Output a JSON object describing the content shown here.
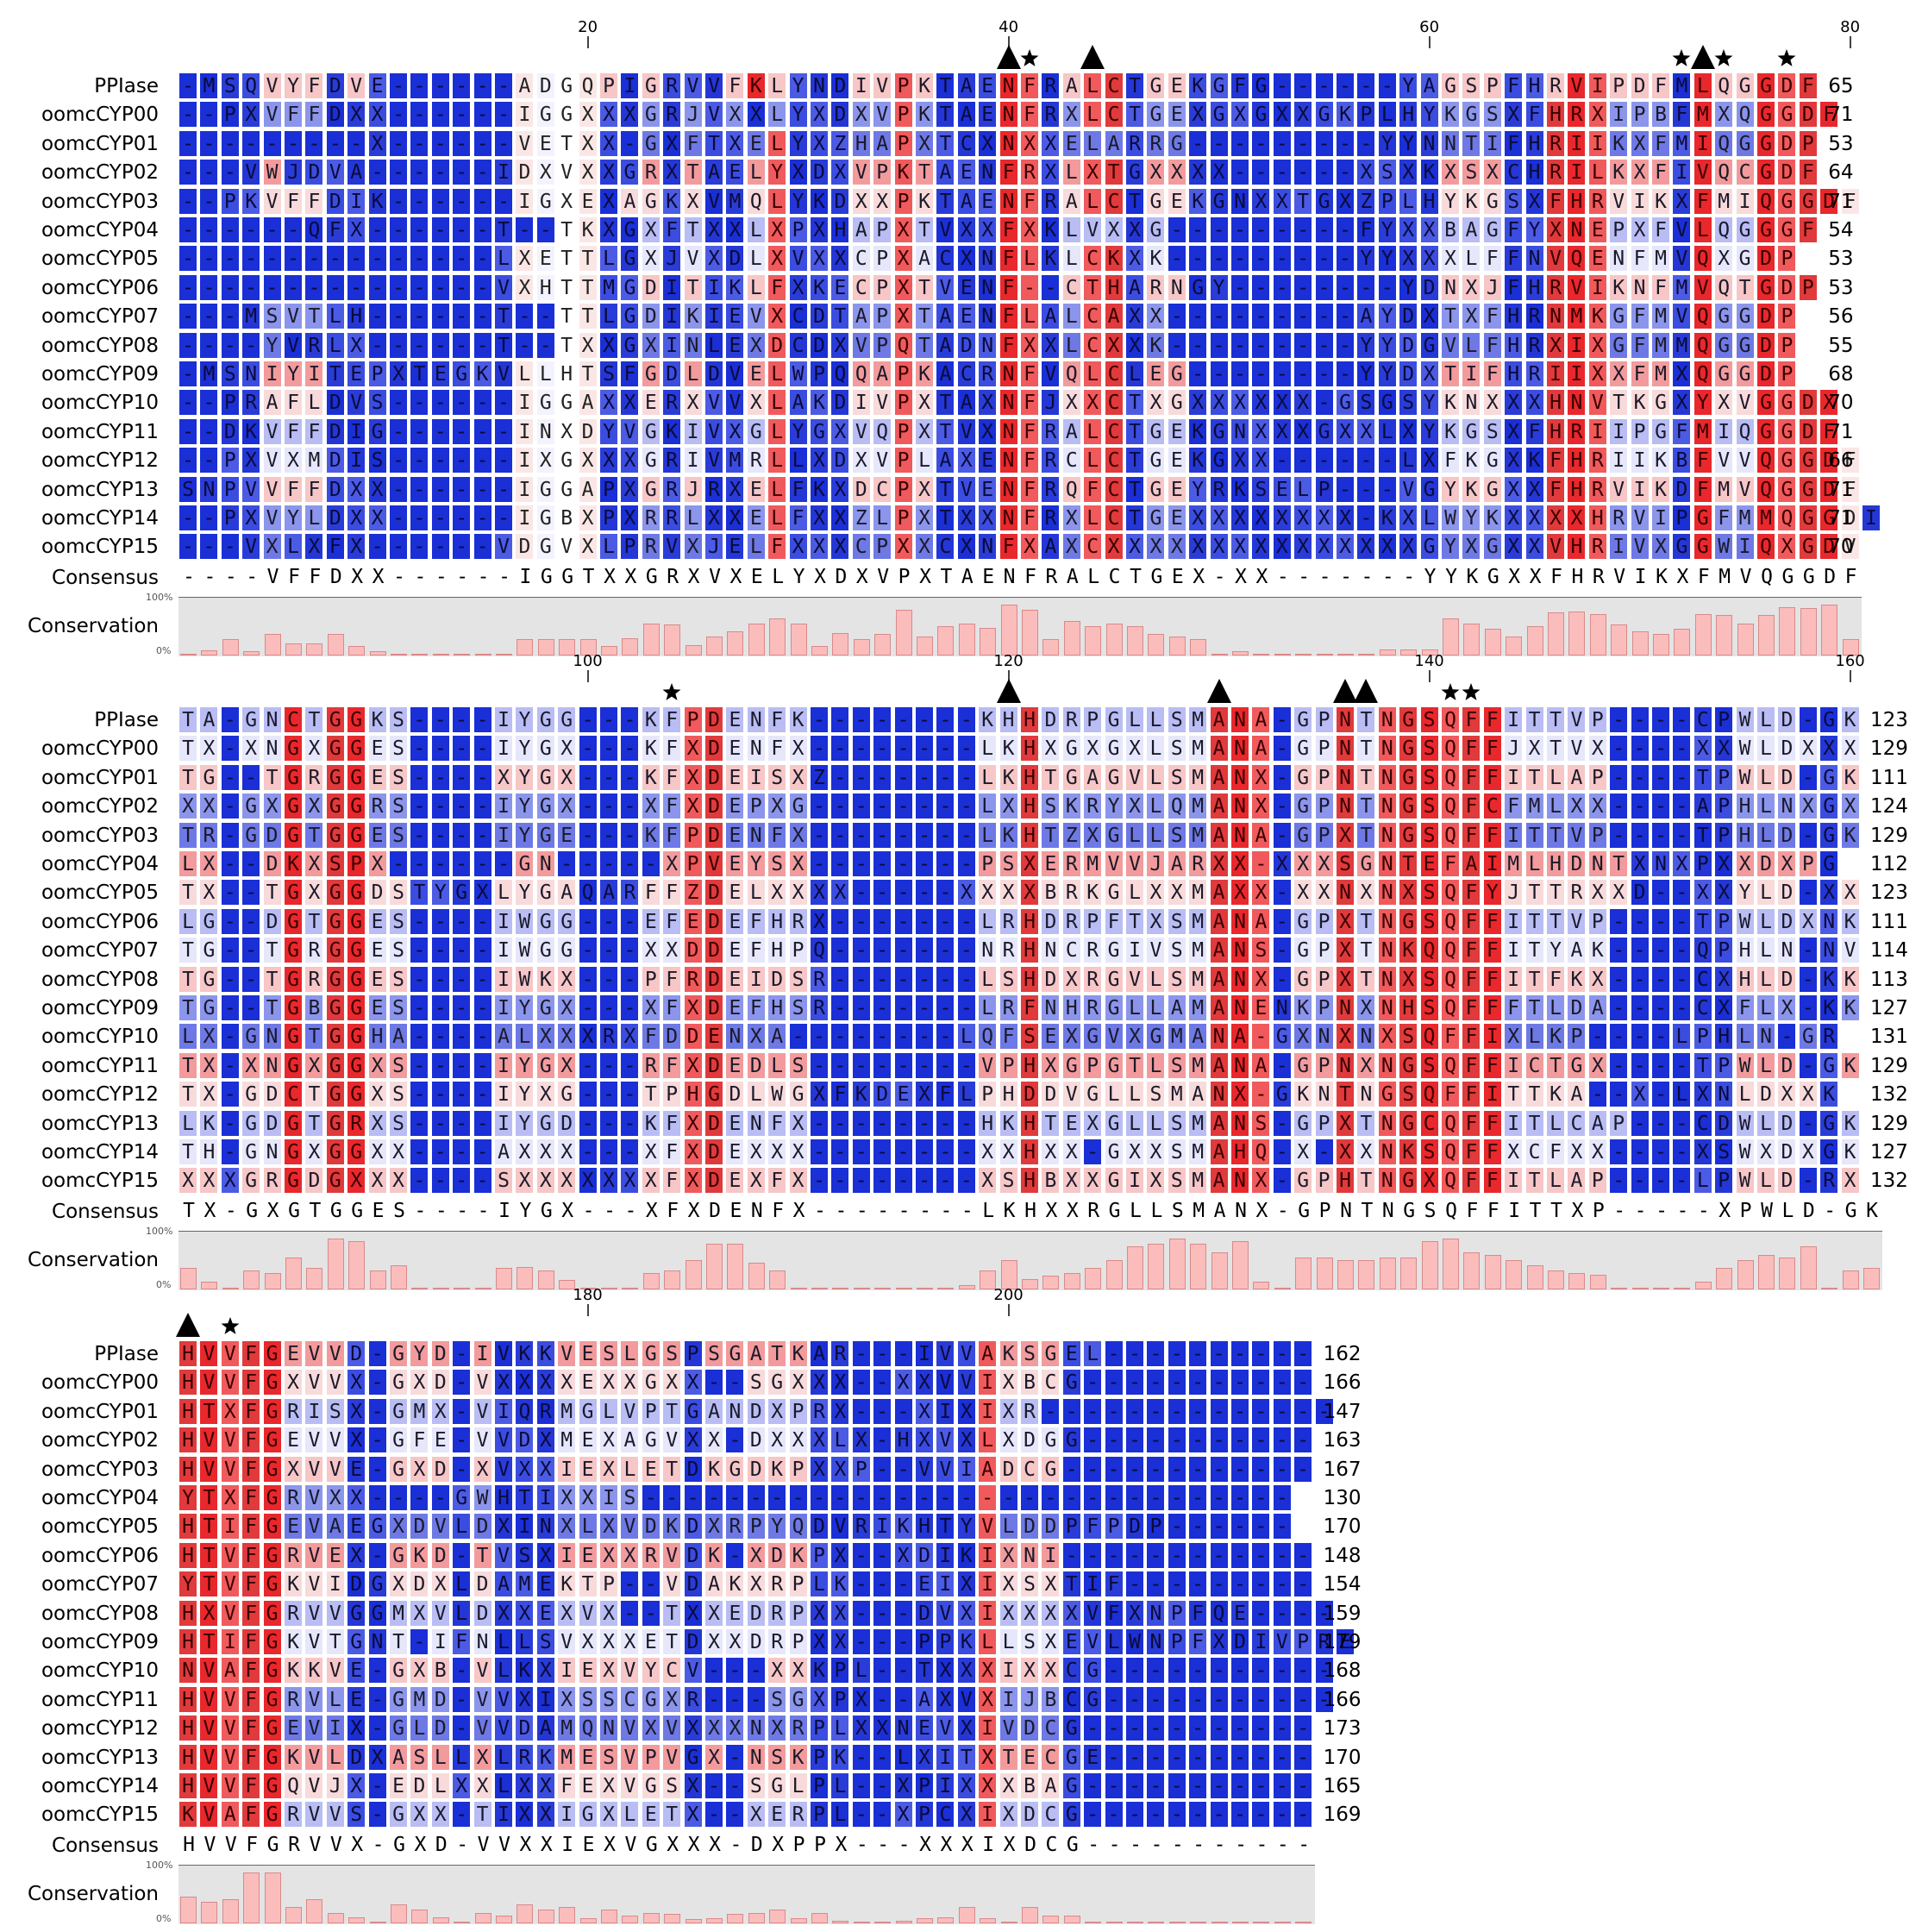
{
  "figure": {
    "labels": {
      "consensus": "Consensus",
      "conservation": "Conservation",
      "pct_top": "100%",
      "pct_bottom": "0%"
    },
    "sequence_names": [
      "PPIase",
      "oomcCYP00",
      "oomcCYP01",
      "oomcCYP02",
      "oomcCYP03",
      "oomcCYP04",
      "oomcCYP05",
      "oomcCYP06",
      "oomcCYP07",
      "oomcCYP08",
      "oomcCYP09",
      "oomcCYP10",
      "oomcCYP11",
      "oomcCYP12",
      "oomcCYP13",
      "oomcCYP14",
      "oomcCYP15"
    ],
    "colors": {
      "red": "#e8282c",
      "blue": "#1a2fd6",
      "white": "#ffffff",
      "bar": "#fbbcbc"
    },
    "blocks": [
      {
        "ruler": [
          {
            "pos": 20,
            "label": "20"
          },
          {
            "pos": 40,
            "label": "40"
          },
          {
            "pos": 60,
            "label": "60"
          },
          {
            "pos": 80,
            "label": "80"
          }
        ],
        "marks": [
          {
            "pos": 40,
            "type": "triangle"
          },
          {
            "pos": 41,
            "type": "star"
          },
          {
            "pos": 44,
            "type": "triangle"
          },
          {
            "pos": 72,
            "type": "star"
          },
          {
            "pos": 73,
            "type": "triangle"
          },
          {
            "pos": 74,
            "type": "star"
          },
          {
            "pos": 77,
            "type": "star"
          }
        ],
        "rows": [
          "-MSQVYFDVE------ADGQPIGRVVFKLYNDIVPKTAENFRALCTGEKGFG------YAGSPFHRVIPDFMLQGGDF",
          "--PXVFFDXX------IGGXXXGRJVXXLYXDXVPKTAENFRXLCTGEXGXGXXGKPLHYKGSXFHRXIPBFMXQGGDF",
          "---------X------VETXX-GXFTXELYXZHAPXTCXNXXELARRG---------YYNNTIFHRIIKXFMIQGGDP",
          "---VWJDVA------IDXVXXGRXTAELYXDXVPKTAENFRXLXTGXXXX------XSXKXSXCHRILKXFIVQCGDF",
          "--PKVFFDIK------IGXEXAGKXVMQLYKDXXPKTAENFRALCTGEKGNXXTGXZPLHYKGSXFHRVIKXFMIQGGDF",
          "------QFX------T--TKXGXFTXXLXPXHAPXTVXXFXKLVXXG---------FYXXBAGFYXNEPXFVLQGGGF",
          "---------------LXETTLGXJVXDLXVXXCPXACXNFLKLCKXK---------YYXXXLFFNVQENFMVQXGDP",
          "---------------VXHTTMGDITIKLFXKECPXTVENF--CTHARNGY--------YDNXJFHRVIKNFMVQTGDP",
          "---MSVTLH------T--TTLGDIKIEVXCDTAPXTAENFLALCAXX---------AYDXTXFHRNMKGFMVQGGDP",
          "----YVRLX------T--TXXGXINLEXDCDXVPQTADNFXXLCXXK---------YYDGVLFHRXIXGFMMQGGDP",
          "-MSNIYITEPXTEGKVLLHTSFGDLDVELWPQQAPKACRNFVQLCLEG--------YYDXTIFHRIIXXFMXQGGDP",
          "--PRAFLDVS------IGGAXXERXVVXLAKDIVPXTAXNFJXXCTXGXXXXXX-GSGSYKNXXXHNVTKGXYXVGGDX",
          "--DKVFFDIG------INXDYVGKIVXGLYGXVQPXTVXNFRALCTGEKGNXXXGXXLXYKGSXFHRIIPGFMIQGGDF",
          "--PXVXMDIS------IXGXXXGRIVMRLLXDXVPLAXENFRCLCTGEKGXX------LXFKGXKFHRIIKBFVVQGGDF",
          "SNPVVFFDXX------IGGAPXGRJRXELFKXDCPXTVENFRQFCTGEYRKSELP---VGYKGXXFHRVIKDFMVQGGDF",
          "--PXVYLDXX------IGBXPXRRLXXELFXXZLPXTXXNFRXLCTGEXXXXXXXX-KXLWYKXXXXHRVIPGFMMQGGDI",
          "---VXLXFX------VDGVXLPRVXJELFXXXCPXXCXNFXAXCXXXXXXXXXXXXXXXGYXGXXVHRIVXGGWIQXGDV"
        ],
        "colors": [
          "BBBBLLLBLBBBBBBBWWWWLBLBBBLRLBBBLLRLBBBRRBLRRBLLBBBBBBBBBBBBLLLBBLRRLLLBRLLRRRRW",
          "BBBBLLLBBBBBBBBBWWWWBBLBLBLBLBBBLLRLBBBRRBLRRBLLBBBBBBBBBBBBLLLBBRRRLLLBRLLRRRRW",
          "BBBBBBBBBBBBBBBBWWWWBBLBLBBLRBBBLLRLBBBRRBLLLBLLBBBBBBBBBBBBLLLBBRRRLLLBRLLRRRRW",
          "BBBBLBBBBBBBBBBBWWWWBBLBLBBLRBBBLLRLBBBRRBLRRBLLBBBBBBBBBBBBLLLBBRRRLLLBRLLRRRRW",
          "BBBBLLLBBBBBBBBBWWWWBLLBLBBLRBBBLLRLBBBRRBLRRBLLBBBBBBBBBBBBLLLBBRRRLLLBRLLRRRRW",
          "BBBBBBBBBBBBBBBBWWWWBBLBLBBLRBBBLLRLBBBRRBLLLBLLBBBBBBBBBBBBLLLBBRRRLLLBRLLRRRRW",
          "BBBBBBBBBBBBBBBBWWWWBBLBLBBLRBBBLLRLBBBRRBLRRBLLBBBBBBBBBBBBLLLBBRRRLLLBRLLRRRRW",
          "BBBBBBBBBBBBBBBBWWWWBBLBLBBLRBBBLLRLBBBRRBLRRBLLBBBBBBBBBBBBLLLBBRRRLLLBRLLRRRRW",
          "BBBBLLLBBBBBBBBBWWWWBBLBLBBLRBBBLLRLBBBRRBLRRBLLBBBBBBBBBBBBLLLBBRRRLLLBRLLRRRRW",
          "BBBBLBBBBBBBBBBBWWWWBBLBLBBLRBBBLLRLBBBRRBLRRBLLBBBBBBBBBBBBLLLBBRRRLLLBRLLRRRRW",
          "BBBBLLLBBBBBBBBBWWWWBBLBLBBLRBBBLLRLBBBRRBLRRBLLBBBBBBBBBBBBLLLBBRRRLLLBRLLRRRRW",
          "BBBBLLLBBBBBBBBBWWWWBBLBLBBLRBBBLLRLBBBRRBLRRBLLBBBBBBBBBBBBLLLBBRRRLLLBRLLRRRRW",
          "BBBBLLLBBBBBBBBBWWWWBBLBLBBLRBBBLLRLBBBRRBLRRBLLBBBBBBBBBBBBLLLBBRRRLLLBRLLRRRRW",
          "BBBBLLLBBBBBBBBBWWWWBBLBLBBLRBBBLLRLBBBRRBLRRBLLBBBBBBBBBBBBLLLBBRRRLLLBRLLRRRRW",
          "BBBBLLLBBBBBBBBBWWWWBBLBLBBLRBBBLLRLBBBRRBLRRBLLBBBBBBBBBBBBLLLBBRRRLLLBRLLRRRRW",
          "BBBBLLLBBBBBBBBBWWWWBBLBLBBLRBBBLLRLBBBRRBLRRBLLBBBBBBBBBBBBLLLBBRRRLLLBRLLRRRRW",
          "BBBBLBBBBBBBBBBBWWWWBBLBLBBLRBBBLLRLBBBRRBLRRBLLBBBBBBBBBBBBLLLBBRRRLLLBRLLRRRRW"
        ],
        "consensus": "----VFFDXX------IGGTXXGRXVXELYXDXVPXTAENFRALCTGEX-XX-------YYKGXXFHRVIKXFMVQGGDF",
        "conservation": [
          3,
          10,
          30,
          8,
          40,
          22,
          22,
          40,
          18,
          8,
          2,
          2,
          2,
          2,
          2,
          2,
          30,
          30,
          30,
          30,
          18,
          32,
          60,
          58,
          20,
          35,
          45,
          60,
          70,
          60,
          18,
          42,
          30,
          40,
          85,
          35,
          55,
          60,
          52,
          95,
          85,
          30,
          65,
          55,
          60,
          55,
          40,
          35,
          30,
          4,
          8,
          4,
          2,
          2,
          2,
          2,
          2,
          12,
          12,
          12,
          70,
          60,
          50,
          35,
          55,
          80,
          82,
          78,
          58,
          45,
          40,
          50,
          78,
          75,
          60,
          75,
          90,
          88,
          95,
          30
        ]
      },
      {
        "ruler": [
          {
            "pos": 100,
            "label": "100"
          },
          {
            "pos": 120,
            "label": "120"
          },
          {
            "pos": 140,
            "label": "140"
          },
          {
            "pos": 160,
            "label": "160"
          }
        ],
        "marks": [
          {
            "pos": 104,
            "type": "star"
          },
          {
            "pos": 120,
            "type": "triangle"
          },
          {
            "pos": 130,
            "type": "triangle"
          },
          {
            "pos": 136,
            "type": "triangle"
          },
          {
            "pos": 137,
            "type": "triangle"
          },
          {
            "pos": 141,
            "type": "star"
          },
          {
            "pos": 142,
            "type": "star"
          }
        ],
        "rows": [
          "TA-GNCTGGKS----IYGG---KFPDENFK--------KHHDRPGLLSMANA-GPNTNGSQFFITTVP----CPWLD-GK",
          "TX-XNGXGGES----IYGX---KFXDENFX--------LKHXGXGXLSMANA-GPNTNGSQFFJXTVX----XXWLDXXX",
          "TG--TGRGGES----XYGX---KFXDEISXZ-------LKHTGAGVLSMANX-GPNTNGSQFFITLAP----TPWLD-GK",
          "XX-GXGXGGRS----IYGX---XFXDEPXG--------LXHSKRYXLQMANX-GPNTNGSQFCFMLXX----APHLNXGX",
          "TR-GDGTGGES----IYGE---KFPDENFX--------LKHTZXGLLSMANA-GPXTNGSQFFITTVP----TPHLD-GK",
          "LX--DKXSPX------GN-----XPVEYSX--------PSXERMVVJARXX-XXXSGNTEFAIMLHDNTXNXPXXDXPG",
          "TX--TGXGGDSTYGXLYGAQARFFZDELXXXX-----XXXXBRKGLXXMAXX-XXNXNXSQFYJTTRXXD--XXYLD-XX",
          "LG--DGTGGES----IWGG---EFEDEFHRX-------LRHDRPFTXSMANA-GPXTNGSQFFITTVP----TPWLDXNK",
          "TG--TGRGGES----IWGG---XXDDEFHPQ-------NRHNCRGIVSMANS-GPXTNKQQFFITYAK----QPHLN-NV",
          "TG--TGRGGES----IWKX---PFRDEIDSR-------LSHDXRGVLSMANX-GPXTNXSQFFITFKX----CXHLD-KK",
          "TG--TGBGGES----IYGX---XFXDEFHSR-------LRFNHRGLLAMANENKPNXNHSQFFFTLDA----CXFLX-KK",
          "LX-GNGTGGHA----ALXXXRXFDDENXA--------LQFSEXGVXGMANA-GXNXNXSQFFIXLKP----LPHLN-GR",
          "TX-XNGXGGXS----IYGX---RFXDEDLS--------VPHXGPGTLSMANA-GPNXNGSQFFICTGX----TPWLD-GK",
          "TX-GDCTGGXS----IYXG---TPHGDLWGXFKDEXFLPHDDVGLLSMANX-GKNTNGSQFFITTKA--X-LXNLDXXK",
          "LK-GDGTGRXS----IYGD---KFXDENFX--------HKHTEXGLLSMANS-GPXTNGCQFFITLCAP---CDWLD-GK",
          "TH-GNGXGGXX----AXXX---XFXDEXXX--------XXHXX-GXXSMAHQ-X-XXNKSQFFXCFXX----XSWXDXGK",
          "XXXGRGDGXXX----SXXXXXXXFXDEXFX--------XSHBXXGIXSMANX-GPHTNGXQFFITLAP----LPWLD-RX"
        ],
        "colors": [
          "LLBLLRLRRLLBBBBLLLLBBBLLRRLLLLBBBBBBBBLLRLLLLLLLLRRRBLLRLRRRRRRLLLLLLBBBBBLLLLBLLL",
          "LLBLLRLRRLLBBBBLLLLBBBLLRRLLLLBBBBBBBBLLRLLLLLLLLRRRBLLRLRRRRRRLLLLLLBBBBBLLLLBLLL",
          "LLBLLRLRRLLBBBBLLLLBBBLLRRLLLLBBBBBBBBLLRLLLLLLLLRRRBLLRLRRRRRRLLLLLLBBBBBLLLLBLLL",
          "LLBLLRLRRLLBBBBLLLLBBBLLRRLLLLBBBBBBBBLLRLLLLLLLLRRRBLLRLRRRRRRLLLLLLBBBBBLLLLBLLL",
          "LLBLLRLRRLLBBBBLLLLBBBLLRRLLLLBBBBBBBBLLRLLLLLLLLRRRBLLRLRRRRRRLLLLLLBBBBBLLLLBLLL",
          "LLBLLRLRRLLBBBBLLLLBBBLLRRLLLLBBBBBBBBLLRLLLLLLLLRRRBLLRLRRRRRRLLLLLLBBBBBLLLLBLLL",
          "LLBLLRLRRLLBBBBLLLLBBBLLRRLLLLBBBBBBBBLLRLLLLLLLLRRRBLLRLRRRRRRLLLLLLBBBBBLLLLBLLL",
          "LLBLLRLRRLLBBBBLLLLBBBLLRRLLLLBBBBBBBBLLRLLLLLLLLRRRBLLRLRRRRRRLLLLLLBBBBBLLLLBLLL",
          "LLBLLRLRRLLBBBBLLLLBBBLLRRLLLLBBBBBBBBLLRLLLLLLLLRRRBLLRLRRRRRRLLLLLLBBBBBLLLLBLLL",
          "LLBLLRLRRLLBBBBLLLLBBBLLRRLLLLBBBBBBBBLLRLLLLLLLLRRRBLLRLRRRRRRLLLLLLBBBBBLLLLBLLL",
          "LLBLLRLRRLLBBBBLLLLBBBLLRRLLLLBBBBBBBBLLRLLLLLLLLRRRBLLRLRRRRRRLLLLLLBBBBBLLLLBLLL",
          "LLBLLRLRRLLBBBBLLLLBBBLLRRLLLLBBBBBBBBLLRLLLLLLLLRRRBLLRLRRRRRRLLLLLLBBBBBLLLLBLLL",
          "LLBLLRLRRLLBBBBLLLLBBBLLRRLLLLBBBBBBBBLLRLLLLLLLLRRRBLLRLRRRRRRLLLLLLBBBBBLLLLBLLL",
          "LLBLLRLRRLLBBBBLLLLBBBLLRRLLLLBBBBBBBBLLRLLLLLLLLRRRBLLRLRRRRRRLLLLLLBBBBBLLLLBLLL",
          "LLBLLRLRRLLBBBBLLLLBBBLLRRLLLLBBBBBBBBLLRLLLLLLLLRRRBLLRLRRRRRRLLLLLLBBBBBLLLLBLLL",
          "LLBLLRLRRLLBBBBLLLLBBBLLRRLLLLBBBBBBBBLLRLLLLLLLLRRRBLLRLRRRRRRLLLLLLBBBBBLLLLBLLL",
          "LLBLLRLRRLLBBBBLLLLBBBLLRRLLLLBBBBBBBBLLRLLLLLLLLRRRBLLRLRRRRRRLLLLLLBBBBBLLLLBLLL"
        ],
        "consensus": "TX-GXGTGGES----IYGX---XFXDENFX--------LKHXXRGLLSMANX-GPNTNGSQFFITTXP-----XPWLD-GK",
        "conservation": [
          40,
          15,
          2,
          35,
          30,
          60,
          40,
          95,
          90,
          35,
          45,
          2,
          2,
          2,
          2,
          40,
          42,
          35,
          18,
          2,
          2,
          2,
          30,
          35,
          55,
          85,
          85,
          50,
          35,
          4,
          2,
          2,
          2,
          2,
          2,
          2,
          2,
          8,
          35,
          55,
          20,
          25,
          30,
          40,
          55,
          80,
          85,
          95,
          85,
          70,
          90,
          15,
          4,
          60,
          60,
          55,
          55,
          60,
          60,
          90,
          95,
          70,
          65,
          55,
          45,
          35,
          30,
          28,
          4,
          2,
          2,
          2,
          15,
          40,
          55,
          65,
          60,
          80,
          4,
          35,
          40
        ]
      },
      {
        "ruler": [
          {
            "pos": 180,
            "label": "180"
          },
          {
            "pos": 200,
            "label": "200"
          }
        ],
        "marks": [
          {
            "pos": 161,
            "type": "triangle"
          },
          {
            "pos": 163,
            "type": "star"
          }
        ],
        "rows": [
          "HVVFGEVVD-GYD-IVKKVESLGSPSGATKAR---IVVAKSGEL----------",
          "HVVFGXVVX-GXD-VXXXXEXXGXX--SGXXX--XXVVIXBCG-----------",
          "HTXFGRISX-GMX-VIQRMGLVPTGANDXPRX---XIXIXR--------------",
          "HVVFGEVVX-GFE-VVDXMEXAGVXX-DXXXLX-HXVXLXDGG-----------",
          "HVVFGXVVE-GXD-XVXXIEXLETDKGDKPXXP--VVIADCG------------",
          "YTXFGRVXX----GWHTIXXIS-------------------------------",
          "HTIFGEVAEGXDVLDXINXLXVDKDXRPYQDVRIKHTYVLDDPFPDP------",
          "HTVFGRVEX-GKD-TVSXIEXXRVDK-XDKPX--XDIKIXNI------------",
          "YTVFGKVIDGXDXLDAMEKTP--VDAKXRPLK---EIXIXSXTIF---------",
          "HXVFGRVVGGMXVLDXXEXVX--TXXEDRPXX---DVXIXXXXVFXNPFQE----",
          "HTIFGKVTGNT-IFNLLSVXXXETDXXDRPXX---PPKLLSXEVLWNPFXDIVPRE",
          "NVAFGKKVE-GXB-VLKXIEXVYCV---XXKPL--TXXXIXXCG-----------",
          "HVVFGRVLE-GMD-VVXIXSSCGXR---SGXPX--AXVXIJBCG-----------",
          "HVVFGEVIX-GLD-VVDAMQNVXVXXXNXRPLXXNEVXIVDCG-----------",
          "HVVFGKVLDXASLLXLRKMESVPVGX-NSKPK--LXITXTECGE----------",
          "HVVFGQVJX-EDLXXLXXFEXVGSX--SGLPL--XPIXXXBAG-----------",
          "KVAFGRVVS-GXX-TIXXIGXLETX--XERPL--XPCXIXDCG-----------"
        ],
        "colors": [
          "RRRRRLLLBBLLLBLBBBLLLLLLBLLLLLBBBBBBBBRLLLBBBBBBBBBBBBBB",
          "RRRRRLLLBBLLLBLBBBLLLLLLBLLLLLBBBBBBBBRLLLBBBBBBBBBBBBBB",
          "RRRRRLLLBBLLLBLBBBLLLLLLBLLLLLBBBBBBBBRLLLBBBBBBBBBBBBBB",
          "RRRRRLLLBBLLLBLBBBLLLLLLBLLLLLBBBBBBBBRLLLBBBBBBBBBBBBBB",
          "RRRRRLLLBBLLLBLBBBLLLLLLBLLLLLBBBBBBBBRLLLBBBBBBBBBBBBBB",
          "RRRRRLLLBBLLLBLBBBLLLLLLBLLLLLBBBBBBBBRLLLBBBBBBBBBBBBBB",
          "RRRRRLLLBBLLLBLBBBLLLLLLBLLLLLBBBBBBBBRLLLBBBBBBBBBBBBBB",
          "RRRRRLLLBBLLLBLBBBLLLLLLBLLLLLBBBBBBBBRLLLBBBBBBBBBBBBBB",
          "RRRRRLLLBBLLLBLBBBLLLLLLBLLLLLBBBBBBBBRLLLBBBBBBBBBBBBBB",
          "RRRRRLLLBBLLLBLBBBLLLLLLBLLLLLBBBBBBBBRLLLBBBBBBBBBBBBBB",
          "RRRRRLLLBBLLLBLBBBLLLLLLBLLLLLBBBBBBBBRLLLBBBBBBBBBBBBBB",
          "RRRRRLLLBBLLLBLBBBLLLLLLBLLLLLBBBBBBBBRLLLBBBBBBBBBBBBBB",
          "RRRRRLLLBBLLLBLBBBLLLLLLBLLLLLBBBBBBBBRLLLBBBBBBBBBBBBBB",
          "RRRRRLLLBBLLLBLBBBLLLLLLBLLLLLBBBBBBBBRLLLBBBBBBBBBBBBBB",
          "RRRRRLLLBBLLLBLBBBLLLLLLBLLLLLBBBBBBBBRLLLBBBBBBBBBBBBBB",
          "RRRRRLLLBBLLLBLBBBLLLLLLBLLLLLBBBBBBBBRLLLBBBBBBBBBBBBBB",
          "RRRRRLLLBBLLLBLBBBLLLLLLBLLLLLBBBBBBBBRLLLBBBBBBBBBBBBBB"
        ],
        "consensus": "HVVFGRVVX-GXD-VVXXIEXVGXXX-DXPPX---XXXIXDCG-----------",
        "conservation": [
          50,
          40,
          45,
          95,
          95,
          30,
          45,
          20,
          12,
          4,
          35,
          25,
          12,
          2,
          20,
          15,
          35,
          25,
          30,
          10,
          25,
          15,
          20,
          18,
          8,
          10,
          18,
          20,
          25,
          10,
          20,
          5,
          2,
          2,
          5,
          10,
          12,
          30,
          10,
          4,
          30,
          15,
          15,
          2,
          2,
          2,
          2,
          2,
          2,
          2,
          2,
          2,
          2,
          2
        ]
      }
    ],
    "counts": [
      [
        "65",
        "71",
        "53",
        "64",
        "71",
        "54",
        "53",
        "53",
        "56",
        "55",
        "68",
        "70",
        "71",
        "66",
        "71",
        "71",
        "70"
      ],
      [
        "123",
        "129",
        "111",
        "124",
        "129",
        "112",
        "123",
        "111",
        "114",
        "113",
        "127",
        "131",
        "129",
        "132",
        "129",
        "127",
        "132"
      ],
      [
        "162",
        "166",
        "147",
        "163",
        "167",
        "130",
        "170",
        "148",
        "154",
        "159",
        "179",
        "168",
        "166",
        "173",
        "170",
        "165",
        "169"
      ]
    ]
  }
}
